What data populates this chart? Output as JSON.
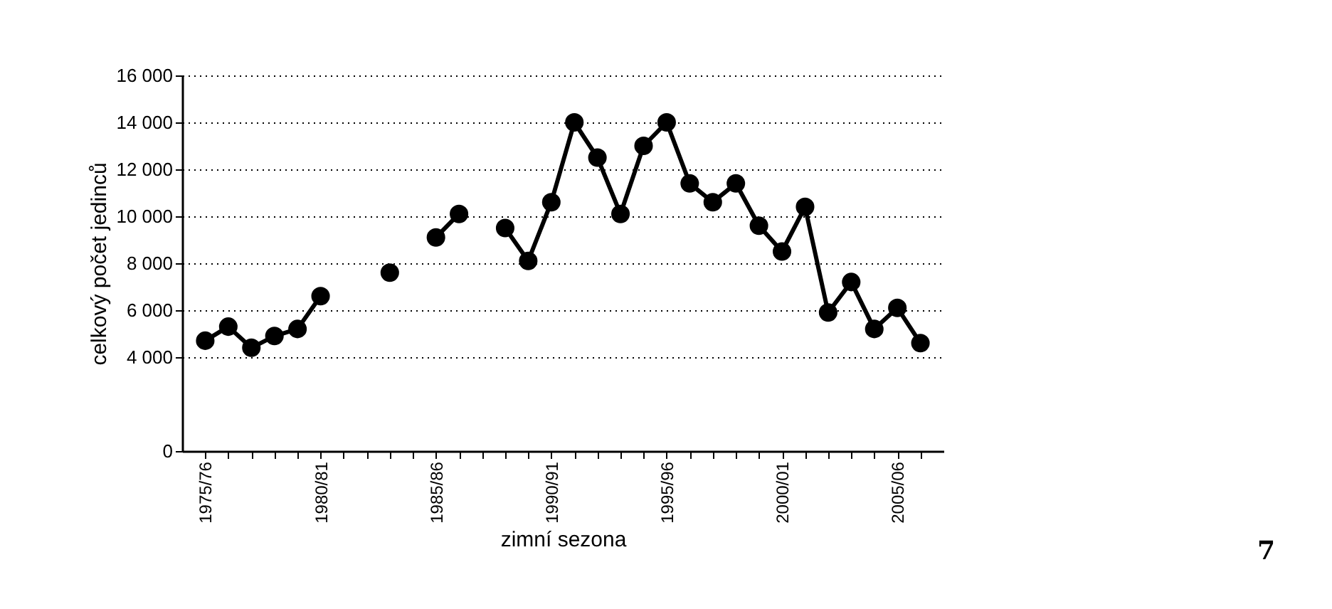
{
  "chart_data": {
    "type": "line",
    "xlabel": "zimní sezona",
    "ylabel": "celkový počet jedinců",
    "categories": [
      "1975/76",
      null,
      null,
      null,
      null,
      "1980/81",
      null,
      null,
      null,
      null,
      "1985/86",
      null,
      null,
      null,
      null,
      "1990/91",
      null,
      null,
      null,
      null,
      "1995/96",
      null,
      null,
      null,
      null,
      "2000/01",
      null,
      null,
      null,
      null,
      "2005/06",
      null
    ],
    "series": [
      {
        "color": "#000000",
        "values": [
          4700,
          5300,
          4400,
          4900,
          5200,
          6600,
          null,
          null,
          7600,
          null,
          9100,
          10100,
          null,
          9500,
          8100,
          10600,
          14000,
          12500,
          10100,
          13000,
          14000,
          11400,
          10600,
          11400,
          9600,
          8500,
          10400,
          5900,
          7200,
          5200,
          6100,
          4600
        ]
      }
    ],
    "ylim": [
      0,
      16000
    ],
    "yticks": [
      {
        "value": 0,
        "label": "0"
      },
      {
        "value": 4000,
        "label": "4 000"
      },
      {
        "value": 6000,
        "label": "6 000"
      },
      {
        "value": 8000,
        "label": "8 000"
      },
      {
        "value": 10000,
        "label": "10 000"
      },
      {
        "value": 12000,
        "label": "12 000"
      },
      {
        "value": 14000,
        "label": "14 000"
      },
      {
        "value": 16000,
        "label": "16 000"
      }
    ],
    "grid": "y",
    "marker": "circle",
    "line_style": "solid",
    "legend": false,
    "annotations": [
      "7"
    ]
  }
}
